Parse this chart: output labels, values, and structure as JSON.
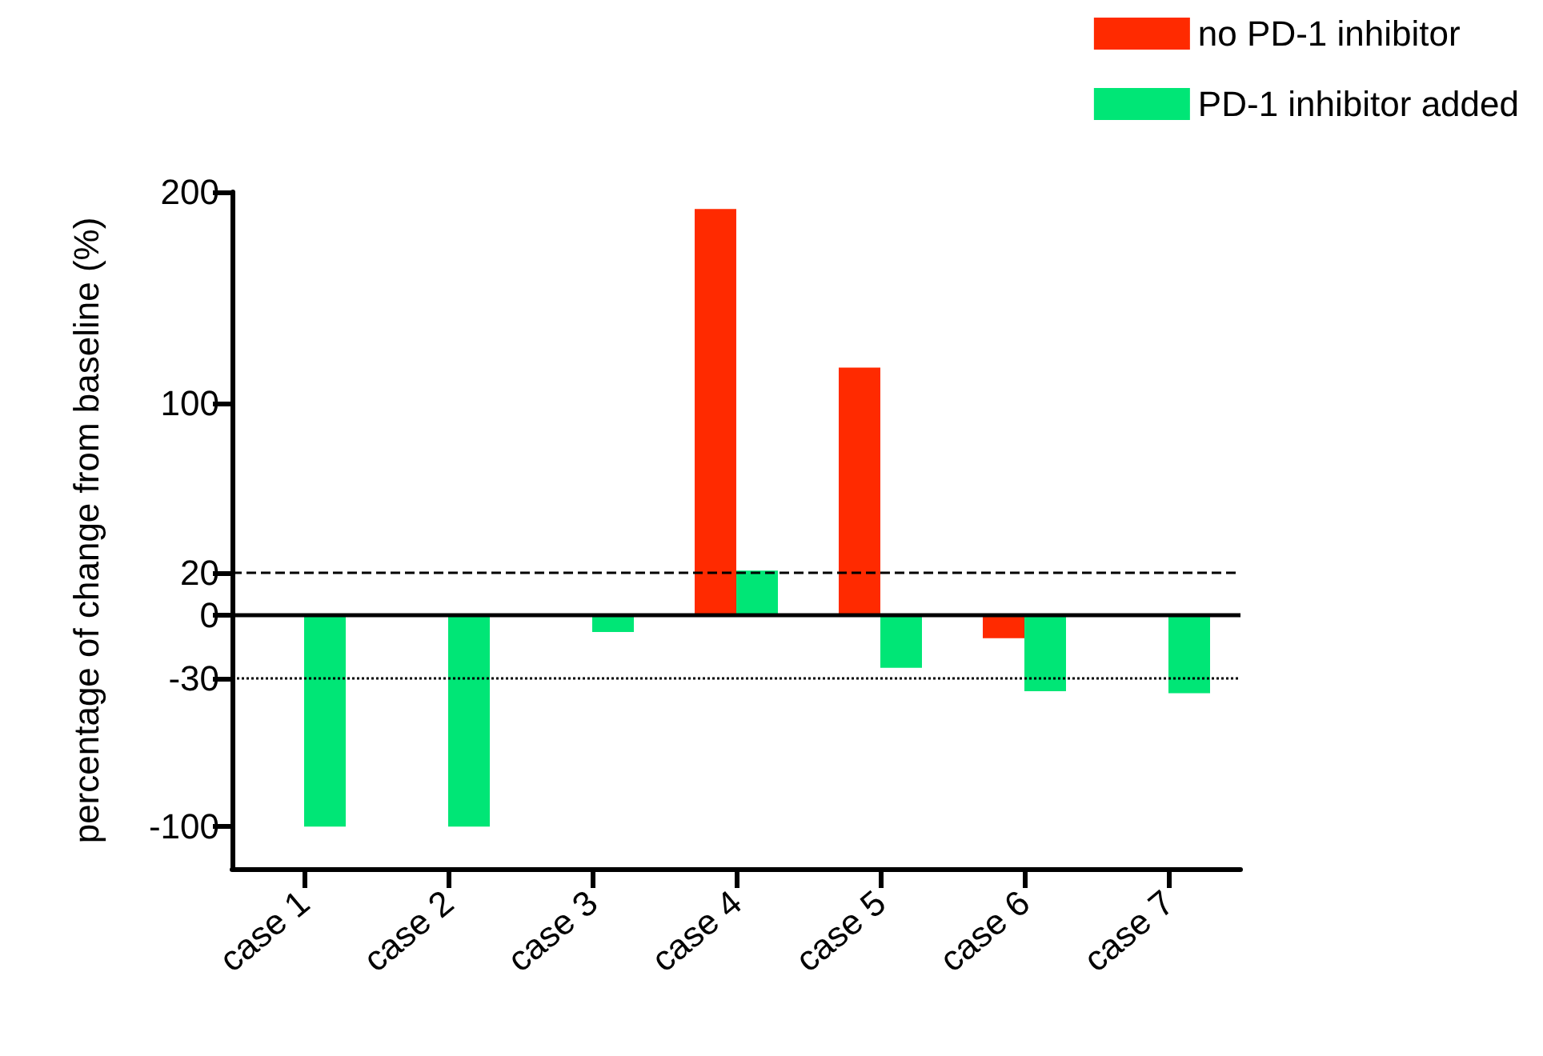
{
  "chart_data": {
    "type": "bar",
    "ylabel": "percentage of change from baseline (%)",
    "categories": [
      "case 1",
      "case 2",
      "case 3",
      "case 4",
      "case 5",
      "case 6",
      "case 7"
    ],
    "series": [
      {
        "name": "no PD-1 inhibitor",
        "color": "#ff2a00",
        "values": [
          null,
          null,
          null,
          192,
          117,
          -11,
          null
        ]
      },
      {
        "name": "PD-1 inhibitor added",
        "color": "#00e676",
        "values": [
          -100,
          -100,
          -8,
          21,
          -25,
          -36,
          -37
        ]
      }
    ],
    "ylim": [
      -120,
      200
    ],
    "yticks": [
      -100,
      -30,
      0,
      20,
      100,
      200
    ],
    "ref_lines": [
      {
        "axis": "y",
        "value": 20,
        "line_style": "dashed"
      },
      {
        "axis": "y",
        "value": 0,
        "line_style": "solid"
      },
      {
        "axis": "y",
        "value": -30,
        "line_style": "dotted"
      }
    ],
    "grid": false,
    "legend": "top right"
  }
}
